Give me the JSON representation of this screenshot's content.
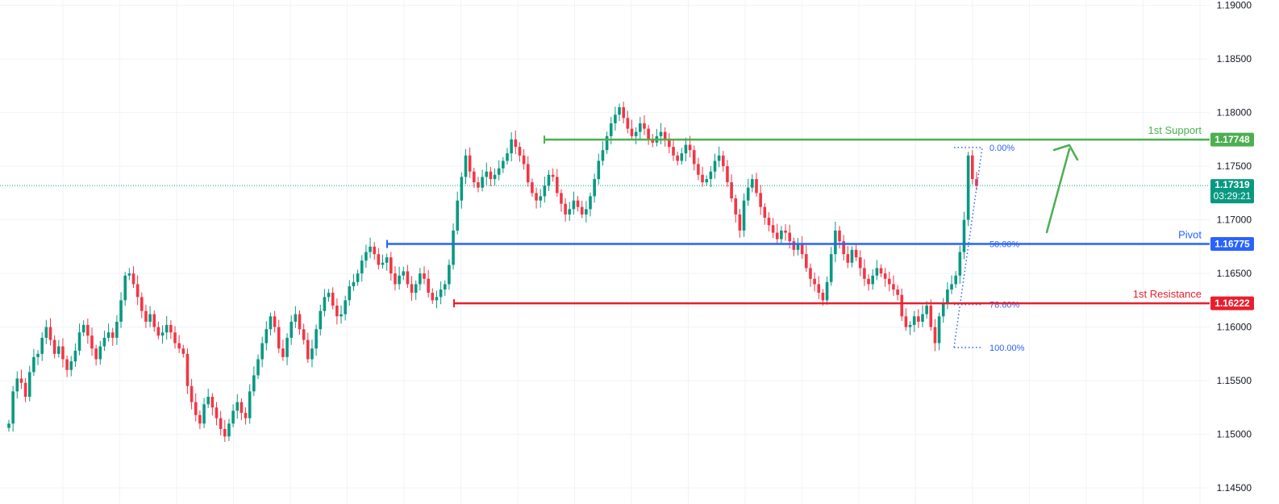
{
  "chart_data": {
    "type": "candlestick",
    "ylim": [
      1.1435,
      1.1905
    ],
    "y_ticks": [
      "1.19000",
      "1.18500",
      "1.18000",
      "1.17500",
      "1.17000",
      "1.16500",
      "1.16000",
      "1.15500",
      "1.15000",
      "1.14500"
    ],
    "grid": true,
    "current_price": {
      "value": "1.17319",
      "countdown": "03:29:21",
      "color": "#089981"
    },
    "levels": [
      {
        "key": "support",
        "label": "1st Support",
        "value": "1.17748",
        "color": "#4caf50"
      },
      {
        "key": "pivot",
        "label": "Pivot",
        "value": "1.16775",
        "color": "#2962ff"
      },
      {
        "key": "resistance",
        "label": "1st Resistance",
        "value": "1.16222",
        "color": "#e91e2d"
      }
    ],
    "fib_levels": [
      {
        "label": "0.00%",
        "price": 1.17675
      },
      {
        "label": "50.00%",
        "price": 1.16775
      },
      {
        "label": "78.60%",
        "price": 1.1621
      },
      {
        "label": "100.00%",
        "price": 1.1581
      }
    ],
    "series": [
      1.151,
      1.154,
      1.1552,
      1.1548,
      1.1535,
      1.1558,
      1.1572,
      1.1575,
      1.159,
      1.16,
      1.1588,
      1.1575,
      1.1582,
      1.157,
      1.156,
      1.1568,
      1.1578,
      1.1595,
      1.1602,
      1.1592,
      1.158,
      1.157,
      1.1582,
      1.159,
      1.1595,
      1.159,
      1.1605,
      1.1625,
      1.1648,
      1.165,
      1.164,
      1.1628,
      1.1615,
      1.1605,
      1.1612,
      1.16,
      1.1592,
      1.1595,
      1.1602,
      1.1595,
      1.1585,
      1.158,
      1.1575,
      1.1545,
      1.153,
      1.1518,
      1.151,
      1.1528,
      1.1535,
      1.1525,
      1.1515,
      1.1505,
      1.1498,
      1.151,
      1.1522,
      1.153,
      1.152,
      1.1515,
      1.154,
      1.1555,
      1.157,
      1.1585,
      1.1598,
      1.161,
      1.16,
      1.158,
      1.1572,
      1.159,
      1.1605,
      1.1612,
      1.1598,
      1.1588,
      1.157,
      1.158,
      1.1598,
      1.1615,
      1.1628,
      1.1632,
      1.162,
      1.161,
      1.1612,
      1.1625,
      1.1638,
      1.1642,
      1.165,
      1.1662,
      1.167,
      1.1675,
      1.1668,
      1.1658,
      1.166,
      1.1665,
      1.165,
      1.164,
      1.1648,
      1.1652,
      1.164,
      1.1632,
      1.164,
      1.165,
      1.1645,
      1.1632,
      1.1625,
      1.1628,
      1.1635,
      1.164,
      1.1658,
      1.169,
      1.1718,
      1.174,
      1.176,
      1.1745,
      1.1735,
      1.173,
      1.174,
      1.1745,
      1.1738,
      1.1742,
      1.1748,
      1.1755,
      1.1762,
      1.1775,
      1.1768,
      1.176,
      1.1752,
      1.1735,
      1.1725,
      1.1718,
      1.1722,
      1.1732,
      1.1742,
      1.174,
      1.1725,
      1.1715,
      1.1705,
      1.171,
      1.1718,
      1.1712,
      1.1705,
      1.171,
      1.1722,
      1.1738,
      1.1755,
      1.1765,
      1.1778,
      1.179,
      1.1798,
      1.1805,
      1.1795,
      1.1785,
      1.1778,
      1.1782,
      1.179,
      1.1785,
      1.1775,
      1.1772,
      1.1778,
      1.1782,
      1.1775,
      1.1768,
      1.176,
      1.1755,
      1.1762,
      1.177,
      1.1765,
      1.1752,
      1.1742,
      1.1735,
      1.1738,
      1.1745,
      1.1755,
      1.176,
      1.175,
      1.1735,
      1.172,
      1.1705,
      1.169,
      1.1718,
      1.173,
      1.1738,
      1.1725,
      1.1712,
      1.1702,
      1.1695,
      1.1688,
      1.1682,
      1.169,
      1.1688,
      1.168,
      1.1672,
      1.1678,
      1.1668,
      1.1655,
      1.1645,
      1.164,
      1.1632,
      1.1625,
      1.1642,
      1.1668,
      1.169,
      1.168,
      1.1668,
      1.166,
      1.1672,
      1.1665,
      1.1655,
      1.1645,
      1.164,
      1.1648,
      1.1655,
      1.165,
      1.1645,
      1.164,
      1.1635,
      1.163,
      1.161,
      1.16,
      1.1602,
      1.161,
      1.1605,
      1.1612,
      1.162,
      1.16,
      1.1585,
      1.161,
      1.1622,
      1.1635,
      1.164,
      1.1648,
      1.167,
      1.17,
      1.176,
      1.1738,
      1.1732
    ]
  }
}
